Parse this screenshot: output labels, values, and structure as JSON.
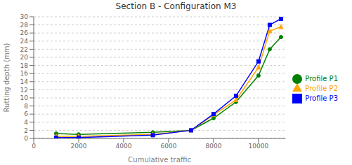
{
  "chart_data": {
    "type": "line",
    "title": "Section B - Configuration M3",
    "xlabel": "Cumulative traffic",
    "ylabel": "Rutting depth (mm)",
    "x": [
      1000,
      2000,
      5300,
      7000,
      8000,
      9000,
      10000,
      10500,
      11000
    ],
    "series": [
      {
        "name": "Profile P1",
        "color": "#008000",
        "marker": "circle",
        "values": [
          1.2,
          1.0,
          1.5,
          2.0,
          5.0,
          9.0,
          15.5,
          22.0,
          25.0
        ]
      },
      {
        "name": "Profile P2",
        "color": "#FFA500",
        "marker": "triangle",
        "values": [
          0.5,
          0.5,
          1.0,
          2.0,
          5.8,
          9.5,
          17.5,
          26.5,
          27.5
        ]
      },
      {
        "name": "Profile P3",
        "color": "#0000FF",
        "marker": "square",
        "values": [
          0.2,
          0.2,
          0.8,
          2.0,
          6.0,
          10.5,
          19.0,
          28.0,
          29.5
        ]
      }
    ],
    "xlim": [
      0,
      11200
    ],
    "ylim": [
      0,
      30
    ],
    "xticks": [
      0,
      2000,
      4000,
      6000,
      8000,
      10000
    ],
    "yticks": [
      0,
      2,
      4,
      6,
      8,
      10,
      12,
      14,
      16,
      18,
      20,
      22,
      24,
      26,
      28,
      30
    ],
    "grid": "y",
    "legend": "right"
  }
}
